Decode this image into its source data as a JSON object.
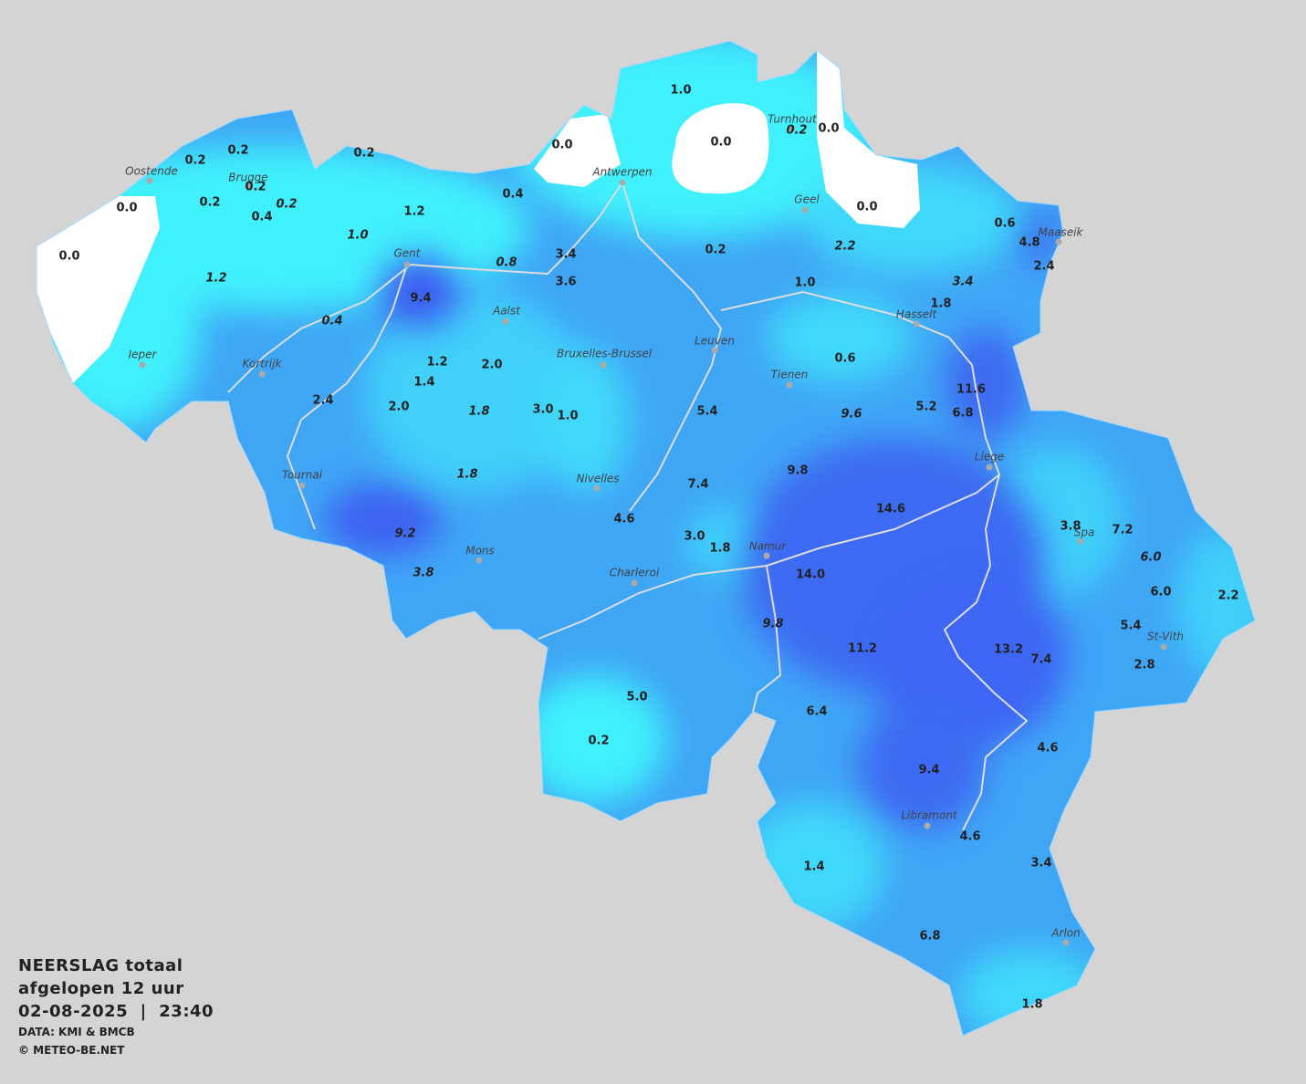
{
  "header": {
    "title": "NEERSLAG totaal",
    "period": "afgelopen 12 uur",
    "datetime": "02-08-2025  |  23:40",
    "source": "DATA: KMI & BMCB",
    "copyright": "© METEO-BE.NET"
  },
  "map": {
    "values": [
      "1.0",
      "0.0",
      "0.0",
      "0.2",
      "0.0",
      "0.2",
      "0.2",
      "0.2",
      "0.2",
      "0.2",
      "0.2",
      "0.4",
      "0.0",
      "0.4",
      "1.2",
      "0.0",
      "0.6",
      "4.8",
      "2.4",
      "1.0",
      "0.0",
      "3.4",
      "0.2",
      "2.2",
      "0.8",
      "1.2",
      "3.6",
      "1.0",
      "3.4",
      "1.8",
      "9.4",
      "0.4",
      "0.6",
      "1.2",
      "2.0",
      "1.4",
      "11.6",
      "2.4",
      "2.0",
      "1.8",
      "3.0",
      "1.0",
      "5.4",
      "9.6",
      "5.2",
      "6.8",
      "1.8",
      "9.8",
      "7.4",
      "14.6",
      "4.6",
      "3.8",
      "7.2",
      "9.2",
      "3.0",
      "1.8",
      "6.0",
      "3.8",
      "14.0",
      "6.0",
      "2.2",
      "9.8",
      "5.4",
      "11.2",
      "13.2",
      "7.4",
      "2.8",
      "5.0",
      "6.4",
      "0.2",
      "4.6",
      "9.4",
      "4.6",
      "1.4",
      "3.4",
      "6.8",
      "1.8"
    ],
    "cities": [
      "Oostende",
      "Brugge",
      "Antwerpen",
      "Turnhout",
      "Geel",
      "Maaseik",
      "Gent",
      "Aalst",
      "Hasselt",
      "Ieper",
      "Kortrijk",
      "Bruxelles-Brussel",
      "Leuven",
      "Tienen",
      "Liege",
      "Tournai",
      "Nivelles",
      "Spa",
      "Mons",
      "Namur",
      "Charleroi",
      "St-Vith",
      "Libramont",
      "Arlon"
    ]
  }
}
